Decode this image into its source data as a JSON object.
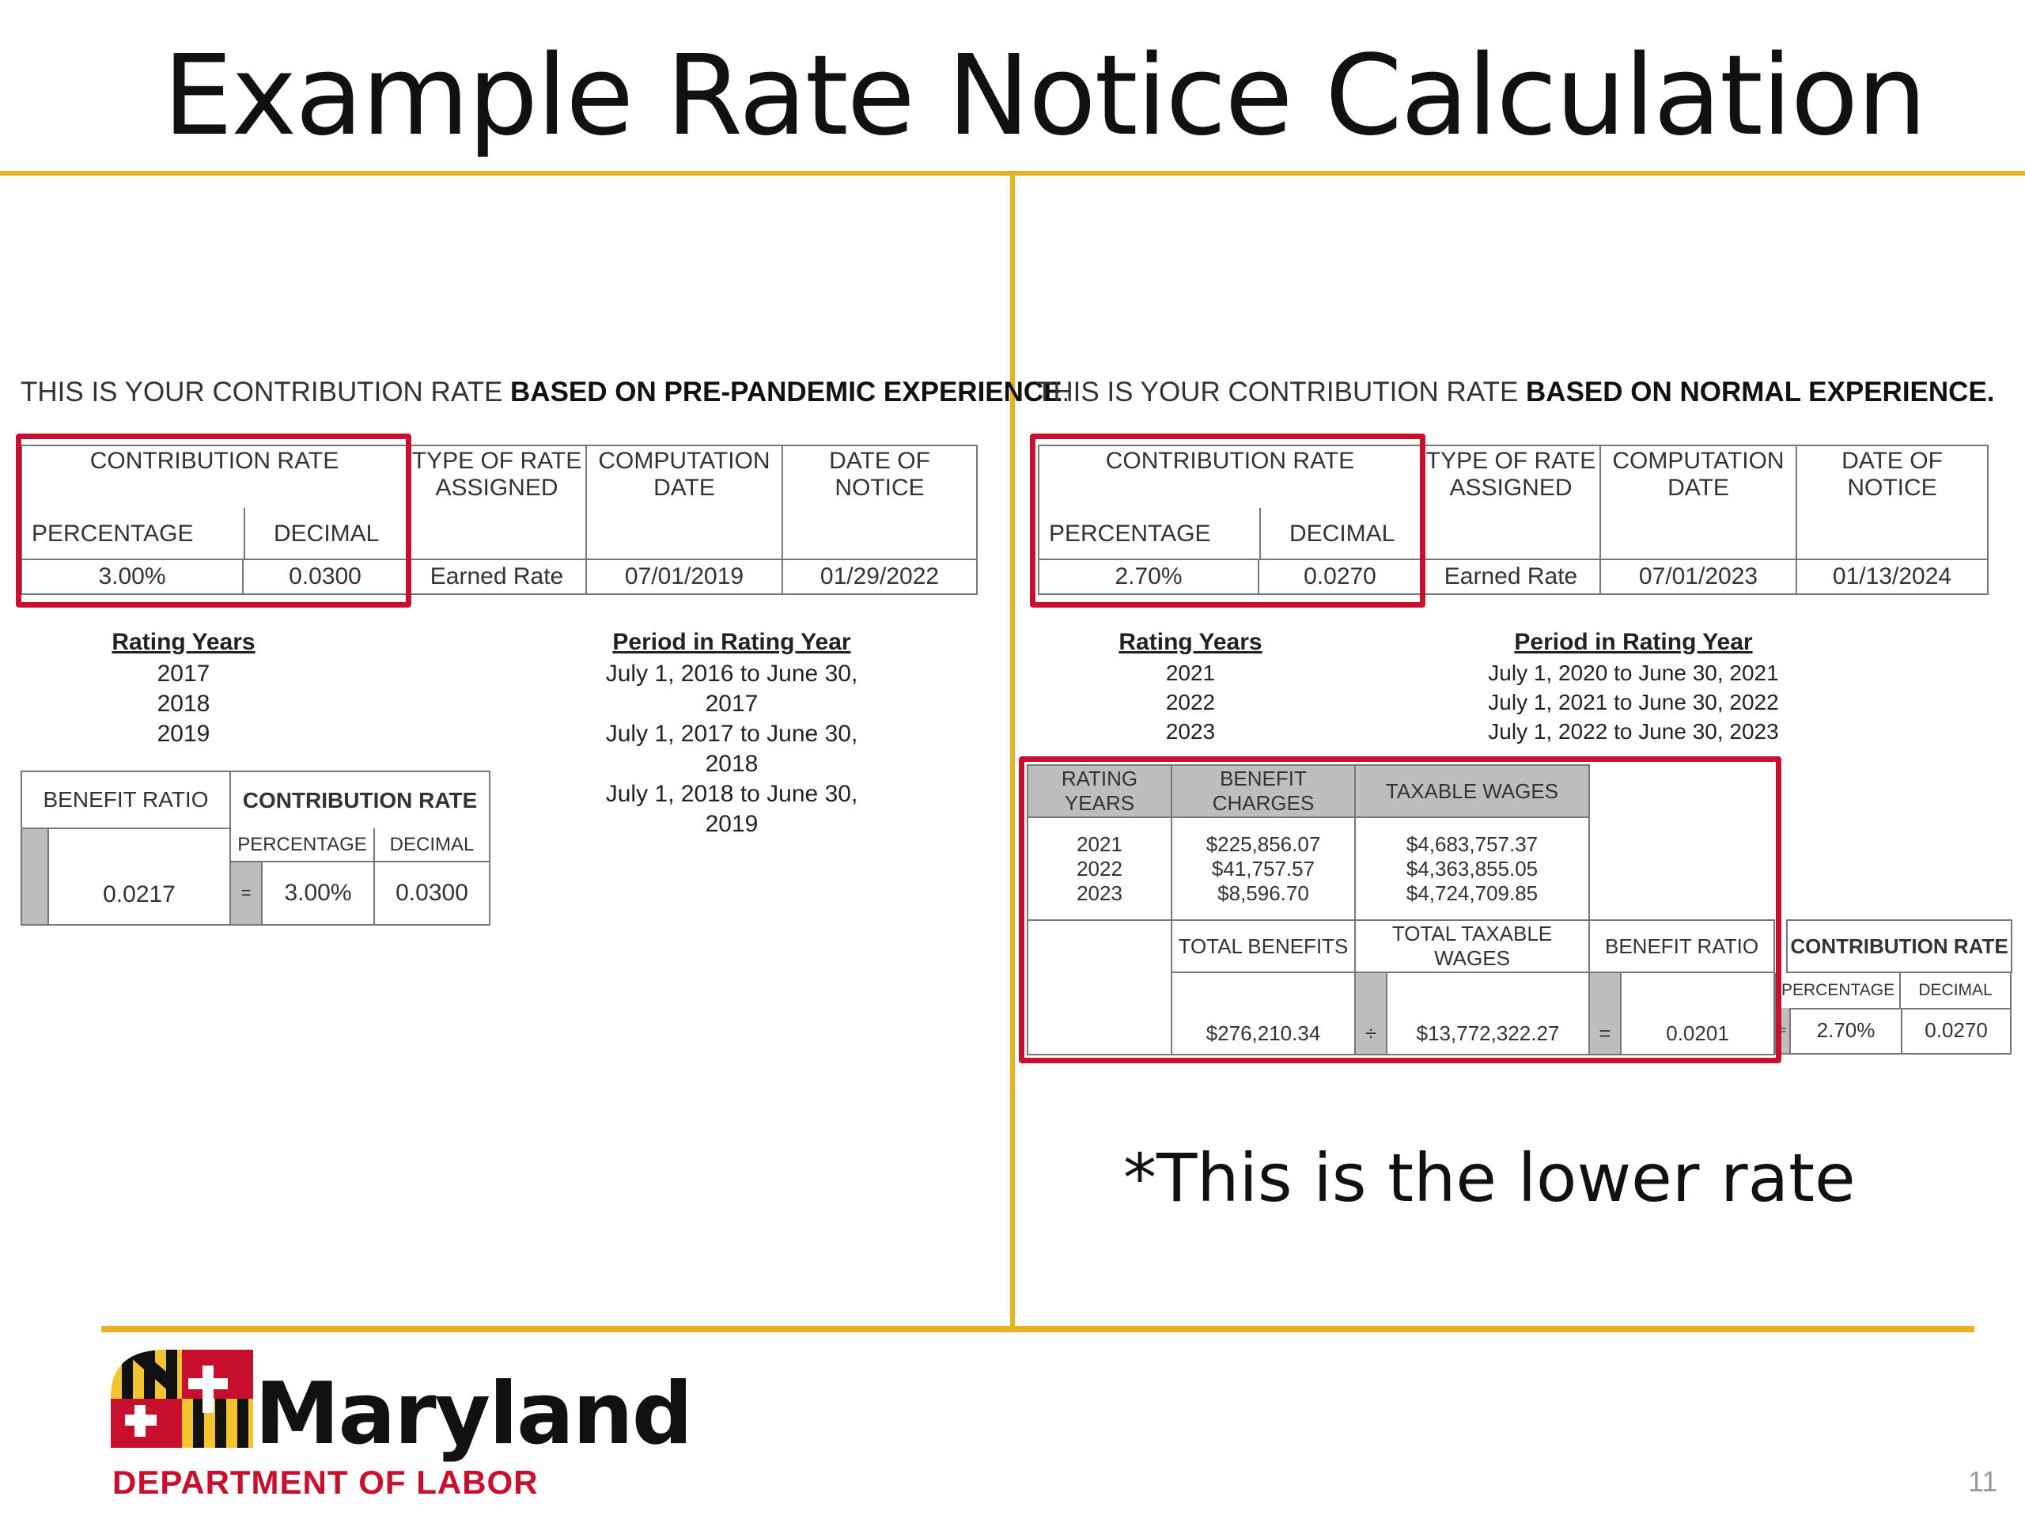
{
  "title": "Example Rate Notice Calculation",
  "left": {
    "heading_normal": "THIS IS YOUR CONTRIBUTION RATE ",
    "heading_bold": "BASED ON PRE-PANDEMIC EXPERIENCE",
    "heading_end": ".",
    "rate_table": {
      "contribution_rate": "CONTRIBUTION RATE",
      "percentage_label": "PERCENTAGE",
      "decimal_label": "DECIMAL",
      "type_label": "TYPE OF RATE ASSIGNED",
      "computation_label": "COMPUTATION DATE",
      "notice_label": "DATE OF NOTICE",
      "percentage": "3.00%",
      "decimal": "0.0300",
      "type": "Earned Rate",
      "computation_date": "07/01/2019",
      "notice_date": "01/29/2022"
    },
    "rating_years_label": "Rating Years",
    "period_label": "Period in Rating Year",
    "years": [
      "2017",
      "2018",
      "2019"
    ],
    "periods": [
      "July 1, 2016 to June 30, 2017",
      "July 1, 2017 to June 30, 2018",
      "July 1, 2018 to June 30, 2019"
    ],
    "ratio_table": {
      "benefit_ratio_label": "BENEFIT RATIO",
      "contribution_rate": "CONTRIBUTION RATE",
      "percentage_label": "PERCENTAGE",
      "decimal_label": "DECIMAL",
      "benefit_ratio": "0.0217",
      "equals": "=",
      "percentage": "3.00%",
      "decimal": "0.0300"
    }
  },
  "right": {
    "heading_normal": "THIS IS YOUR CONTRIBUTION RATE ",
    "heading_bold": "BASED ON NORMAL EXPERIENCE.",
    "rate_table": {
      "contribution_rate": "CONTRIBUTION RATE",
      "percentage_label": "PERCENTAGE",
      "decimal_label": "DECIMAL",
      "type_label": "TYPE OF RATE ASSIGNED",
      "computation_label": "COMPUTATION DATE",
      "notice_label": "DATE OF NOTICE",
      "percentage": "2.70%",
      "decimal": "0.0270",
      "type": "Earned Rate",
      "computation_date": "07/01/2023",
      "notice_date": "01/13/2024"
    },
    "rating_years_label": "Rating Years",
    "period_label": "Period in Rating Year",
    "years": [
      "2021",
      "2022",
      "2023"
    ],
    "periods": [
      "July 1, 2020 to June 30, 2021",
      "July 1, 2021 to June 30, 2022",
      "July 1, 2022 to June 30, 2023"
    ],
    "calc_table": {
      "rating_years_label": "RATING YEARS",
      "benefit_charges_label": "BENEFIT CHARGES",
      "taxable_wages_label": "TAXABLE WAGES",
      "years": [
        "2021",
        "2022",
        "2023"
      ],
      "charges": [
        "$225,856.07",
        "$41,757.57",
        "$8,596.70"
      ],
      "wages": [
        "$4,683,757.37",
        "$4,363,855.05",
        "$4,724,709.85"
      ],
      "total_benefits_label": "TOTAL BENEFITS",
      "total_wages_label": "TOTAL TAXABLE WAGES",
      "benefit_ratio_label": "BENEFIT RATIO",
      "contribution_rate": "CONTRIBUTION RATE",
      "percentage_label": "PERCENTAGE",
      "decimal_label": "DECIMAL",
      "total_benefits": "$276,210.34",
      "divide": "÷",
      "total_wages": "$13,772,322.27",
      "equals": "=",
      "benefit_ratio": "0.0201",
      "equals2": "=",
      "percentage": "2.70%",
      "decimal": "0.0270"
    },
    "note": "*This is the lower rate"
  },
  "logo": {
    "name": "Maryland",
    "subtitle": "DEPARTMENT OF LABOR"
  },
  "page_number": "11",
  "colors": {
    "accent_gold": "#E5B222",
    "highlight_red": "#C8102E"
  }
}
